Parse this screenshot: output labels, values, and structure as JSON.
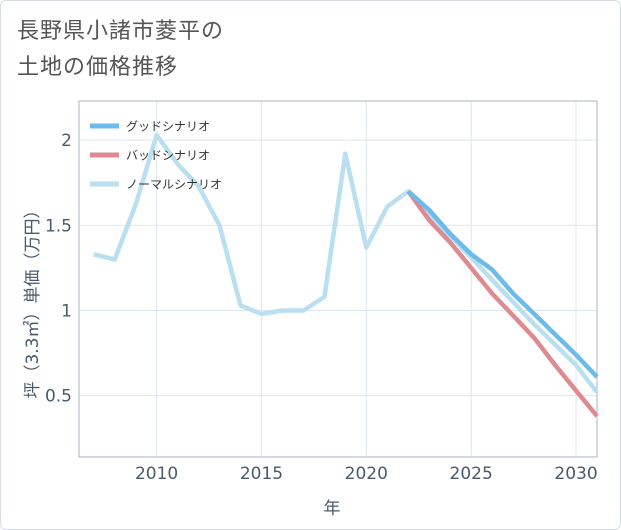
{
  "title": {
    "line1": "長野県小諸市菱平の",
    "line2": "土地の価格推移"
  },
  "chart_data": {
    "type": "line",
    "xlabel": "年",
    "ylabel": "坪（3.3㎡）単価（万円）",
    "xlim": [
      2006.3,
      2031
    ],
    "ylim": [
      0.14,
      2.23
    ],
    "xticks": [
      2010,
      2015,
      2020,
      2025,
      2030
    ],
    "yticks": [
      0.5,
      1,
      1.5,
      2
    ],
    "ytick_labels": [
      "0.5",
      "1",
      "1.5",
      "2"
    ],
    "legend_position": "top-left",
    "series": [
      {
        "name": "グッドシナリオ",
        "color": "#6cbbea",
        "x": [
          2022,
          2023,
          2024,
          2025,
          2026,
          2027,
          2028,
          2029,
          2030,
          2031
        ],
        "values": [
          1.7,
          1.59,
          1.45,
          1.33,
          1.24,
          1.1,
          0.98,
          0.86,
          0.74,
          0.61
        ]
      },
      {
        "name": "バッドシナリオ",
        "color": "#de8a90",
        "x": [
          2022,
          2023,
          2024,
          2025,
          2026,
          2027,
          2028,
          2029,
          2030,
          2031
        ],
        "values": [
          1.7,
          1.53,
          1.4,
          1.25,
          1.1,
          0.97,
          0.84,
          0.68,
          0.53,
          0.38
        ]
      },
      {
        "name": "ノーマルシナリオ",
        "color": "#badff0",
        "x": [
          2007,
          2008,
          2009,
          2010,
          2011,
          2012,
          2013,
          2014,
          2015,
          2016,
          2017,
          2018,
          2019,
          2020,
          2021,
          2022,
          2023,
          2024,
          2025,
          2026,
          2027,
          2028,
          2029,
          2030,
          2031
        ],
        "values": [
          1.33,
          1.3,
          1.62,
          2.03,
          1.86,
          1.73,
          1.5,
          1.03,
          0.98,
          1.0,
          1.0,
          1.08,
          1.92,
          1.37,
          1.61,
          1.7,
          1.56,
          1.44,
          1.31,
          1.18,
          1.05,
          0.92,
          0.8,
          0.68,
          0.52
        ]
      }
    ]
  }
}
